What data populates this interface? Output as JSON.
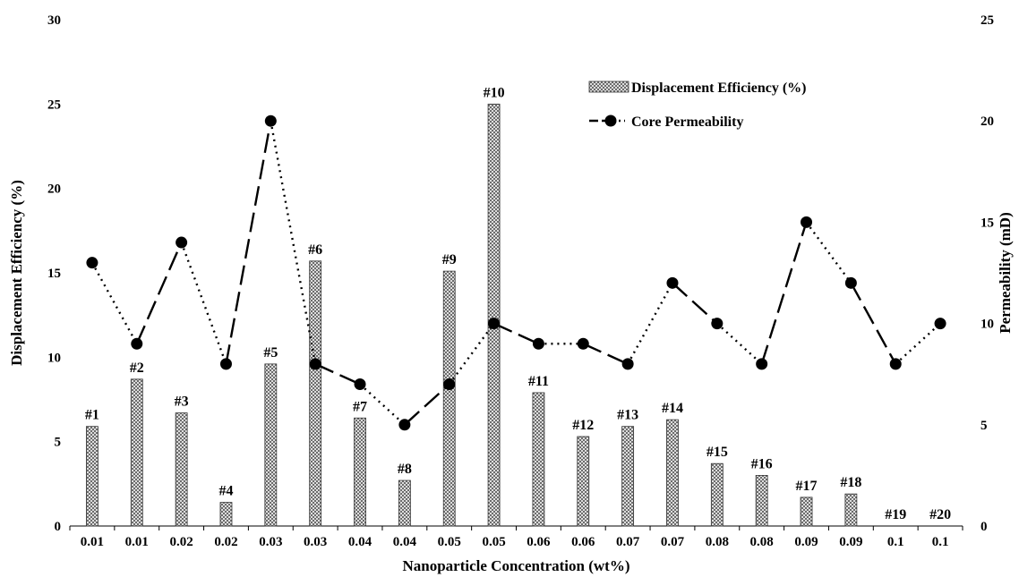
{
  "chart_data": {
    "type": "bar",
    "xlabel": "Nanoparticle Concentration (wt%)",
    "ylabel": "Displacement Efficiency (%)",
    "y2label": "Permeability (mD)",
    "ylim": [
      0,
      30
    ],
    "y2lim": [
      0,
      25
    ],
    "yticks": [
      "0",
      "5",
      "10",
      "15",
      "20",
      "25",
      "30"
    ],
    "y2ticks": [
      "0",
      "5",
      "10",
      "15",
      "20",
      "25"
    ],
    "categories": [
      "0.01",
      "0.01",
      "0.02",
      "0.02",
      "0.03",
      "0.03",
      "0.04",
      "0.04",
      "0.05",
      "0.05",
      "0.06",
      "0.06",
      "0.07",
      "0.07",
      "0.08",
      "0.08",
      "0.09",
      "0.09",
      "0.1",
      "0.1"
    ],
    "bar_labels": [
      "#1",
      "#2",
      "#3",
      "#4",
      "#5",
      "#6",
      "#7",
      "#8",
      "#9",
      "#10",
      "#11",
      "#12",
      "#13",
      "#14",
      "#15",
      "#16",
      "#17",
      "#18",
      "#19",
      "#20"
    ],
    "series": [
      {
        "name": "Displacement Efficiency (%)",
        "type": "bar",
        "axis": "left",
        "values": [
          5.9,
          8.7,
          6.7,
          1.4,
          9.6,
          15.7,
          6.4,
          2.7,
          15.1,
          25.0,
          7.9,
          5.3,
          5.9,
          6.3,
          3.7,
          3.0,
          1.7,
          1.9,
          0,
          0
        ]
      },
      {
        "name": "Core Permeability",
        "type": "line",
        "axis": "right",
        "values": [
          13,
          9,
          14,
          8,
          20,
          8,
          7,
          5,
          7,
          10,
          9,
          9,
          8,
          12,
          10,
          8,
          15,
          12,
          8,
          10
        ]
      }
    ],
    "legend_position": "top-right",
    "grid": false,
    "colors": {
      "bar_pattern": "#555555",
      "line": "#000000",
      "marker": "#000000"
    }
  }
}
